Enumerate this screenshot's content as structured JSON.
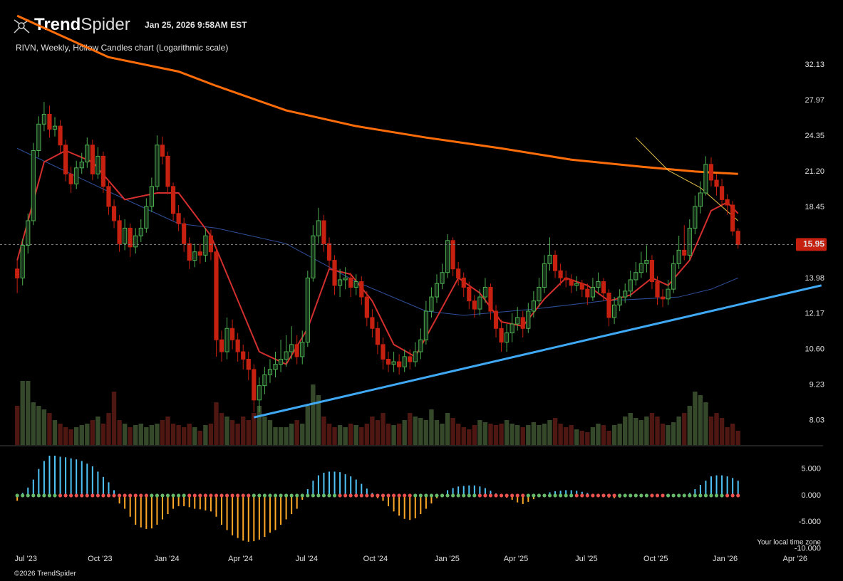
{
  "header": {
    "logo_bold": "Trend",
    "logo_light": "Spider",
    "timestamp": "Jan 25, 2026 9:58AM EST"
  },
  "chart_data": {
    "type": "candlestick",
    "title": "RIVN, Weekly, Hollow Candles chart (Logarithmic scale)",
    "log_scale": true,
    "grid": false,
    "up_color": "#4caf50",
    "up_fill": "#17301a",
    "down_color": "#c62010",
    "open": [
      14.5,
      14.0,
      15.9,
      17.5,
      23.0,
      25.5,
      26.5,
      25.0,
      25.3,
      23.5,
      21.0,
      20.2,
      21.5,
      22.0,
      23.5,
      21.0,
      22.5,
      20.0,
      18.5,
      17.5,
      16.0,
      17.0,
      15.8,
      16.5,
      17.0,
      18.5,
      20.0,
      23.5,
      22.5,
      20.0,
      18.0,
      17.3,
      16.0,
      15.0,
      15.5,
      15.3,
      16.5,
      15.5,
      11.0,
      10.5,
      11.5,
      11.0,
      10.5,
      10.2,
      9.8,
      8.7,
      9.2,
      9.6,
      9.8,
      10.0,
      10.2,
      10.5,
      10.8,
      10.3,
      10.9,
      14.0,
      16.5,
      17.5,
      16.0,
      15.0,
      13.6,
      13.9,
      14.0,
      13.5,
      13.8,
      13.0,
      12.0,
      11.5,
      10.8,
      10.2,
      10.0,
      10.1,
      9.9,
      10.3,
      10.1,
      10.5,
      11.0,
      12.3,
      13.0,
      13.7,
      14.3,
      16.2,
      14.5,
      14.0,
      13.5,
      12.8,
      12.4,
      13.0,
      13.5,
      12.3,
      11.5,
      10.9,
      11.3,
      11.7,
      12.0,
      11.5,
      12.3,
      12.8,
      13.5,
      14.8,
      15.3,
      14.4,
      14.0,
      13.9,
      13.6,
      13.7,
      13.4,
      13.0,
      13.5,
      13.8,
      13.2,
      12.0,
      12.6,
      13.0,
      13.3,
      13.9,
      14.3,
      14.8,
      15.0,
      13.8,
      13.0,
      12.9,
      13.4,
      14.8,
      15.6,
      15.3,
      17.0,
      18.5,
      19.5,
      21.8,
      20.5,
      20.0,
      19.0,
      18.6,
      16.8
    ],
    "high": [
      15.0,
      16.3,
      18.0,
      23.7,
      26.3,
      27.8,
      27.4,
      26.2,
      25.9,
      24.0,
      21.6,
      22.1,
      22.8,
      24.2,
      24.0,
      23.3,
      22.9,
      20.5,
      19.0,
      17.9,
      17.6,
      17.3,
      17.0,
      17.6,
      19.1,
      20.7,
      24.4,
      24.3,
      22.9,
      20.3,
      18.6,
      17.7,
      16.4,
      16.0,
      16.0,
      17.0,
      16.9,
      15.8,
      11.4,
      12.0,
      11.9,
      11.3,
      10.8,
      10.5,
      10.0,
      9.5,
      9.9,
      10.2,
      10.5,
      11.0,
      11.2,
      11.6,
      11.2,
      11.4,
      14.4,
      17.2,
      18.4,
      17.9,
      16.4,
      15.3,
      14.5,
      14.6,
      14.3,
      14.2,
      14.1,
      13.3,
      12.4,
      11.8,
      11.1,
      10.5,
      10.5,
      10.4,
      10.6,
      10.6,
      10.9,
      11.5,
      12.8,
      13.5,
      14.2,
      14.8,
      16.6,
      16.4,
      14.9,
      14.3,
      13.8,
      13.1,
      13.4,
      14.0,
      13.7,
      12.6,
      11.9,
      11.7,
      12.2,
      12.5,
      12.3,
      12.7,
      13.3,
      14.0,
      15.3,
      16.4,
      15.6,
      14.8,
      14.4,
      14.2,
      14.1,
      13.9,
      13.7,
      14.0,
      14.3,
      14.0,
      13.4,
      13.0,
      13.4,
      13.7,
      14.4,
      14.9,
      15.5,
      15.9,
      15.3,
      14.1,
      13.4,
      13.9,
      15.3,
      16.5,
      17.2,
      17.6,
      19.3,
      20.4,
      22.5,
      22.4,
      21.0,
      20.6,
      19.4,
      18.9,
      17.0
    ],
    "low": [
      13.2,
      13.6,
      15.4,
      17.2,
      22.4,
      24.8,
      24.2,
      24.3,
      22.8,
      20.4,
      19.5,
      19.8,
      21.0,
      21.5,
      20.5,
      20.6,
      19.5,
      17.9,
      17.0,
      15.5,
      15.6,
      15.2,
      15.4,
      16.1,
      16.7,
      18.1,
      19.7,
      21.8,
      19.4,
      17.5,
      16.8,
      15.5,
      14.5,
      14.6,
      14.8,
      14.9,
      15.0,
      10.3,
      10.1,
      10.2,
      10.6,
      10.1,
      9.8,
      9.4,
      8.3,
      8.3,
      8.9,
      9.3,
      9.5,
      9.7,
      9.9,
      10.2,
      10.0,
      10.0,
      10.7,
      13.8,
      16.0,
      15.5,
      14.5,
      13.1,
      13.0,
      13.4,
      13.0,
      13.1,
      12.6,
      11.6,
      11.1,
      10.4,
      9.8,
      9.7,
      9.7,
      9.6,
      9.7,
      9.8,
      9.9,
      10.2,
      10.8,
      12.0,
      12.7,
      13.4,
      14.0,
      14.1,
      13.6,
      13.0,
      12.4,
      12.0,
      12.1,
      12.7,
      11.9,
      11.1,
      10.5,
      10.5,
      10.9,
      11.4,
      11.1,
      11.3,
      12.0,
      12.5,
      13.2,
      14.4,
      14.0,
      13.6,
      13.5,
      13.2,
      13.3,
      13.0,
      12.6,
      12.8,
      13.2,
      12.8,
      11.6,
      11.7,
      12.3,
      12.7,
      13.0,
      13.6,
      14.0,
      14.3,
      13.4,
      12.6,
      12.5,
      12.6,
      13.2,
      14.5,
      15.0,
      15.0,
      16.6,
      18.0,
      19.3,
      20.0,
      19.3,
      18.6,
      17.9,
      16.5,
      15.7
    ],
    "close": [
      14.0,
      15.9,
      17.5,
      23.0,
      25.5,
      26.5,
      25.0,
      25.3,
      23.5,
      21.0,
      20.2,
      21.5,
      22.0,
      23.5,
      21.0,
      22.5,
      20.0,
      18.5,
      17.5,
      16.0,
      17.0,
      15.8,
      16.5,
      17.0,
      18.5,
      20.0,
      23.5,
      22.5,
      20.0,
      18.0,
      17.3,
      16.0,
      15.0,
      15.5,
      15.3,
      16.5,
      15.5,
      11.0,
      10.5,
      11.5,
      11.0,
      10.5,
      10.2,
      9.8,
      8.7,
      9.2,
      9.6,
      9.8,
      10.0,
      10.2,
      10.5,
      10.8,
      10.3,
      10.9,
      14.0,
      16.5,
      17.5,
      16.0,
      15.0,
      13.6,
      13.9,
      14.0,
      13.5,
      13.8,
      13.0,
      12.0,
      11.5,
      10.8,
      10.2,
      10.0,
      10.1,
      9.9,
      10.3,
      10.1,
      10.5,
      11.0,
      12.3,
      13.0,
      13.7,
      14.3,
      16.2,
      14.5,
      14.0,
      13.5,
      12.8,
      12.4,
      13.0,
      13.5,
      12.3,
      11.5,
      10.9,
      11.3,
      11.7,
      12.0,
      11.5,
      12.3,
      12.8,
      13.5,
      14.8,
      15.3,
      14.4,
      14.0,
      13.9,
      13.6,
      13.7,
      13.4,
      13.0,
      13.5,
      13.8,
      13.2,
      12.0,
      12.6,
      13.0,
      13.3,
      13.9,
      14.3,
      14.8,
      15.0,
      13.8,
      13.0,
      12.9,
      13.4,
      14.8,
      15.6,
      15.3,
      17.0,
      18.5,
      19.5,
      21.8,
      20.5,
      20.0,
      19.0,
      18.6,
      16.8,
      15.95
    ],
    "volume": [
      55,
      90,
      90,
      60,
      55,
      50,
      45,
      35,
      30,
      25,
      22,
      25,
      28,
      30,
      35,
      40,
      30,
      45,
      75,
      35,
      30,
      25,
      28,
      30,
      25,
      28,
      30,
      35,
      40,
      30,
      28,
      25,
      30,
      25,
      20,
      28,
      30,
      60,
      45,
      40,
      35,
      30,
      40,
      35,
      45,
      55,
      40,
      35,
      25,
      25,
      25,
      30,
      35,
      30,
      55,
      85,
      70,
      40,
      30,
      25,
      28,
      25,
      30,
      28,
      25,
      30,
      40,
      35,
      45,
      30,
      28,
      30,
      35,
      45,
      40,
      38,
      35,
      50,
      35,
      30,
      45,
      38,
      30,
      25,
      22,
      28,
      35,
      32,
      30,
      28,
      30,
      35,
      30,
      28,
      25,
      28,
      32,
      28,
      30,
      35,
      38,
      30,
      25,
      28,
      22,
      20,
      18,
      25,
      30,
      28,
      20,
      28,
      30,
      40,
      45,
      38,
      35,
      40,
      45,
      40,
      30,
      28,
      32,
      40,
      45,
      55,
      75,
      70,
      60,
      40,
      45,
      38,
      25,
      30,
      20
    ],
    "volume_ylim": [
      0,
      150
    ],
    "volume_up_color": "#35492a",
    "volume_down_color": "#4e1712",
    "xlim": [
      -3.2,
      149.8
    ],
    "ylim": [
      7.3,
      33.13
    ],
    "yticks": [
      32.13,
      27.97,
      24.35,
      {
        "value": 21.2,
        "label": "21.20"
      },
      18.45,
      13.98,
      12.17,
      {
        "value": 10.6,
        "label": "10.60"
      },
      9.23,
      8.03
    ],
    "xticks": [
      {
        "value": 1.6,
        "label": "Jul '23"
      },
      {
        "value": 15.4,
        "label": "Oct '23"
      },
      {
        "value": 27.8,
        "label": "Jan '24"
      },
      {
        "value": 41.5,
        "label": "Apr '24"
      },
      {
        "value": 53.8,
        "label": "Jul '24"
      },
      {
        "value": 66.6,
        "label": "Oct '24"
      },
      {
        "value": 79.9,
        "label": "Jan '25"
      },
      {
        "value": 92.7,
        "label": "Apr '25"
      },
      {
        "value": 105.8,
        "label": "Jul '25"
      },
      {
        "value": 118.7,
        "label": "Oct '25"
      },
      {
        "value": 131.6,
        "label": "Jan '26"
      },
      {
        "value": 144.6,
        "label": "Apr '26"
      }
    ],
    "overlays": [
      {
        "color": "#ff6d0a",
        "width": 3,
        "x": [
          0,
          17,
          30,
          37,
          50,
          63,
          76,
          90,
          103,
          116,
          126,
          134
        ],
        "values": [
          38.9,
          33.1,
          31.3,
          29.6,
          26.9,
          25.3,
          24.2,
          23.2,
          22.2,
          21.6,
          21.2,
          21.0
        ]
      },
      {
        "color": "#2f4f9a",
        "width": 1,
        "x": [
          0,
          17,
          30,
          37,
          50,
          63,
          76,
          83,
          96,
          109,
          123,
          129,
          134
        ],
        "values": [
          23.2,
          19.6,
          17.3,
          17.0,
          16.0,
          13.8,
          12.3,
          12.1,
          12.4,
          12.8,
          13.0,
          13.4,
          14.0
        ]
      },
      {
        "color": "#d32f2f",
        "width": 2,
        "x": [
          0,
          5,
          9,
          14,
          20,
          26,
          30,
          36,
          40,
          45,
          50,
          54,
          58,
          62,
          66,
          70,
          74,
          78,
          82,
          86,
          90,
          94,
          98,
          102,
          106,
          110,
          114,
          118,
          121,
          125,
          129,
          132,
          134
        ],
        "values": [
          15,
          22,
          23,
          22,
          19,
          19.5,
          19.5,
          16.5,
          13.5,
          10.5,
          10.0,
          11.5,
          14.5,
          14.2,
          12.8,
          10.8,
          10.3,
          12.0,
          14.0,
          13.2,
          11.8,
          11.6,
          12.9,
          14.0,
          13.6,
          12.8,
          13.1,
          14.0,
          13.6,
          15.0,
          18.2,
          18.8,
          18.0
        ]
      },
      {
        "color": "#e6c04a",
        "width": 1,
        "x": [
          115,
          121,
          127,
          134
        ],
        "values": [
          24.2,
          21.3,
          19.9,
          17.5
        ]
      },
      {
        "color": "#3fa9f5",
        "width": 3,
        "x": [
          44,
          149.5
        ],
        "values": [
          8.13,
          13.6
        ]
      }
    ],
    "price_label_color": "#c62010",
    "oscillator": {
      "type": "histogram",
      "pos_color": "#4fc3f7",
      "neg_color": "#ffa726",
      "dot_up_color": "#66bb6a",
      "dot_down_color": "#ef5350",
      "ylim": [
        -10.6,
        7.5
      ],
      "yticks": [
        {
          "value": 5,
          "label": "5.000"
        },
        {
          "value": 0,
          "label": "0.000"
        },
        {
          "value": -5,
          "label": "-5.000"
        },
        {
          "value": -10,
          "label": "-10.000"
        }
      ],
      "values": [
        -1,
        0.5,
        1.5,
        3,
        5,
        6.5,
        7.5,
        7.5,
        7.3,
        7.2,
        7.0,
        6.8,
        6.5,
        6.0,
        5.5,
        4.5,
        3.5,
        2.5,
        1.0,
        -1.5,
        -2.5,
        -4,
        -5.5,
        -6,
        -6.3,
        -6.2,
        -5.5,
        -4.5,
        -3.5,
        -2.5,
        -2.0,
        -2,
        -2.2,
        -2.5,
        -2.6,
        -2.8,
        -3.0,
        -4.0,
        -5.5,
        -6.5,
        -7.5,
        -8.0,
        -8.5,
        -8.7,
        -8.6,
        -8.3,
        -7.8,
        -7.0,
        -6.5,
        -5.5,
        -4.5,
        -3.5,
        -2.5,
        -0.8,
        1.2,
        2.8,
        3.8,
        4.3,
        4.5,
        4.5,
        4.4,
        4.0,
        3.6,
        3.0,
        2.2,
        1.3,
        0.5,
        -0.5,
        -1.0,
        -2.0,
        -3.0,
        -3.8,
        -4.4,
        -4.6,
        -4.3,
        -3.5,
        -2.5,
        -1.5,
        -0.5,
        0.3,
        1.0,
        1.4,
        1.7,
        1.8,
        1.9,
        1.9,
        1.7,
        1.4,
        0.9,
        0.4,
        0.1,
        -0.4,
        -0.8,
        -1.3,
        -1.6,
        -1.2,
        -0.7,
        -0.2,
        0.3,
        0.6,
        0.8,
        0.9,
        1.0,
        1.0,
        0.9,
        0.7,
        0.5,
        0.3,
        0.1,
        -0.1,
        -0.4,
        -0.5,
        -0.4,
        -0.3,
        -0.1,
        0.0,
        0.1,
        0.2,
        0.1,
        -0.1,
        -0.3,
        -0.3,
        -0.2,
        -0.1,
        0.1,
        0.5,
        1.2,
        2.0,
        2.8,
        3.6,
        3.8,
        3.8,
        3.6,
        3.3,
        2.8
      ]
    }
  },
  "footer": {
    "timezone": "Your local time zone",
    "copyright": "©2026 TrendSpider"
  }
}
